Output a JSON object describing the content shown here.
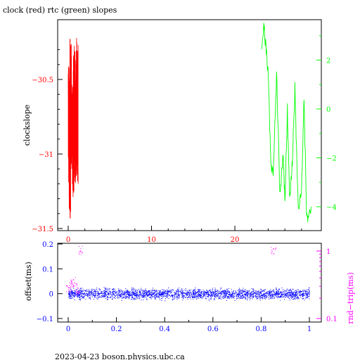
{
  "footer": "2023-04-23  boson.physics.ubc.ca",
  "colors": {
    "clock": "#ff0000",
    "rtc": "#00ff00",
    "offset": "#0000ff",
    "roundtrip": "#ff00ff",
    "axis": "#000000"
  },
  "chart_data": [
    {
      "type": "line",
      "title": "clock (red) rtc (green) slopes",
      "ylabel": "clockslope",
      "y2label": "",
      "xlim": [
        0,
        29.7
      ],
      "ylim": [
        -31.5,
        -30.2
      ],
      "y2lim": [
        -5.0,
        3.8
      ],
      "xticks": [
        0,
        10,
        20
      ],
      "xtick_labels": [
        "0",
        "10",
        "20"
      ],
      "yticks": [
        -30.5,
        -31,
        -31.5
      ],
      "ytick_labels": [
        "−30.5",
        "−31",
        "−31.5"
      ],
      "y2ticks": [
        2,
        0,
        -2,
        -4
      ],
      "y2tick_labels": [
        "2",
        "0",
        "−2",
        "−4"
      ],
      "series": [
        {
          "name": "clock (red)",
          "axis": "left",
          "x": [
            0.0,
            0.1,
            0.2,
            0.3,
            0.4,
            0.5,
            0.6,
            0.7,
            0.8,
            0.9,
            1.0,
            1.1,
            1.2
          ],
          "y": [
            -31.2,
            -30.4,
            -31.45,
            -30.2,
            -31.1,
            -30.5,
            -31.3,
            -30.25,
            -31.2,
            -30.3,
            -31.15,
            -30.2,
            -31.2
          ]
        },
        {
          "name": "rtc (green)",
          "axis": "right",
          "x": [
            23.2,
            23.5,
            23.8,
            24.0,
            24.3,
            24.6,
            25.0,
            25.4,
            25.8,
            26.0,
            26.3,
            26.6,
            26.9,
            27.2,
            27.6,
            28.0,
            28.3,
            28.6,
            28.9,
            29.2
          ],
          "y": [
            2.6,
            3.4,
            2.2,
            1.5,
            -2.0,
            -2.8,
            1.5,
            -3.5,
            -1.8,
            -3.9,
            0.0,
            -3.8,
            -2.2,
            0.8,
            -4.0,
            -3.3,
            0.5,
            -4.2,
            -4.5,
            -4.0
          ]
        }
      ]
    },
    {
      "type": "scatter",
      "title": "",
      "ylabel": "offset(ms)",
      "y2label": "rnd−trip(ms)",
      "xlim": [
        -0.04,
        1.04
      ],
      "ylim": [
        -0.11,
        0.2
      ],
      "y2lim": [
        0.1,
        1.4
      ],
      "y2scale": "log",
      "xticks": [
        0,
        0.2,
        0.4,
        0.6,
        0.8,
        1
      ],
      "xtick_labels": [
        "0",
        "0.2",
        "0.4",
        "0.6",
        "0.8",
        "1"
      ],
      "yticks": [
        0.2,
        0.1,
        0,
        -0.1
      ],
      "ytick_labels": [
        "0.2",
        "0.1",
        "0",
        "−0.1"
      ],
      "y2ticks": [
        1,
        0.1
      ],
      "y2tick_labels": [
        "1",
        "0.1"
      ],
      "series": [
        {
          "name": "offset",
          "axis": "left",
          "x": [
            0.0,
            0.1,
            0.2,
            0.3,
            0.4,
            0.5,
            0.6,
            0.7,
            0.8,
            0.9,
            1.0
          ],
          "y": [
            0.0,
            0.0,
            0.0,
            0.0,
            0.0,
            0.0,
            0.0,
            0.0,
            0.0,
            0.0,
            0.0
          ],
          "spread": 0.03
        },
        {
          "name": "round-trip",
          "axis": "right",
          "x": [
            0.0,
            0.01,
            0.02,
            0.03,
            0.04,
            0.05,
            0.85
          ],
          "y": [
            0.28,
            0.32,
            0.36,
            0.3,
            0.26,
            1.05,
            1.05
          ]
        }
      ]
    }
  ]
}
